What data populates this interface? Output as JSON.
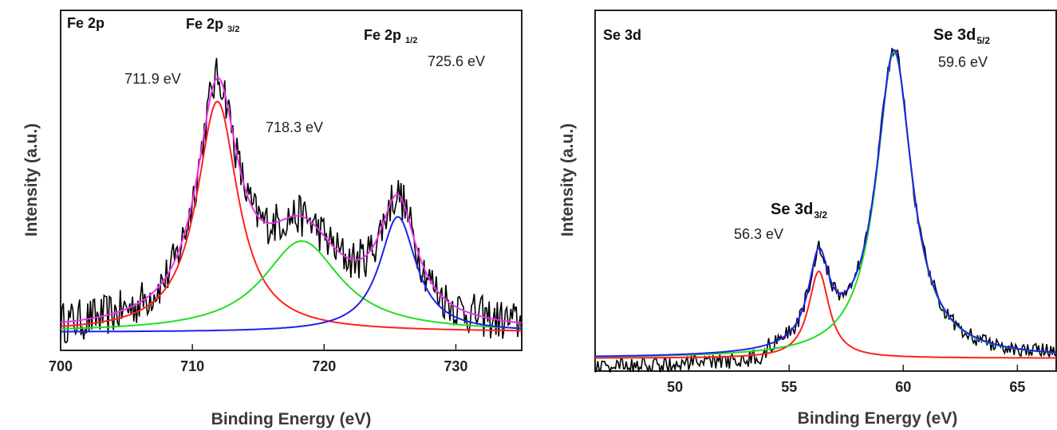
{
  "chart_data": [
    {
      "type": "line",
      "panel_label": "Fe 2p",
      "xlabel": "Binding Energy (eV)",
      "ylabel": "Intensity (a.u.)",
      "xlim": [
        700,
        735
      ],
      "xticks": [
        700,
        710,
        720,
        730
      ],
      "y_ticks_shown": false,
      "annotations": [
        {
          "text": "Fe 2p",
          "sub": "3/2",
          "x": 711.9
        },
        {
          "text": "Fe 2p",
          "sub": "1/2",
          "x": 725.6
        },
        {
          "text": "711.9 eV",
          "x": 711.9
        },
        {
          "text": "718.3 eV",
          "x": 718.3
        },
        {
          "text": "725.6 eV",
          "x": 725.6
        }
      ],
      "baseline": 0.06,
      "peaks": [
        {
          "center": 711.9,
          "height": 0.76,
          "width": 1.9,
          "color": "#ff2020"
        },
        {
          "center": 718.3,
          "height": 0.3,
          "width": 3.6,
          "color": "#22dd22"
        },
        {
          "center": 725.6,
          "height": 0.38,
          "width": 1.7,
          "color": "#2020ee"
        }
      ],
      "envelope_color": "#ee30ee",
      "experimental_color": "#000000",
      "noise_amplitude": 0.07,
      "ylim": [
        0,
        1.12
      ]
    },
    {
      "type": "line",
      "panel_label": "Se 3d",
      "xlabel": "Binding Energy (eV)",
      "ylabel": "Intensity (a.u.)",
      "xlim": [
        46.5,
        66.7
      ],
      "xticks": [
        50,
        55,
        60,
        65
      ],
      "y_ticks_shown": false,
      "annotations": [
        {
          "text": "Se 3d",
          "sub": "3/2",
          "x": 56.3
        },
        {
          "text": "Se 3d",
          "sub": "5/2",
          "x": 59.6
        },
        {
          "text": "56.3 eV",
          "x": 56.3
        },
        {
          "text": "59.6 eV",
          "x": 59.6
        }
      ],
      "baseline": 0.04,
      "peaks": [
        {
          "center": 56.3,
          "height": 0.27,
          "width": 0.55,
          "color": "#ff2020"
        },
        {
          "center": 59.6,
          "height": 0.95,
          "width": 0.95,
          "color": "#22dd22"
        }
      ],
      "envelope_color": "#2020ee",
      "experimental_color": "#000000",
      "noise_amplitude": 0.025,
      "ylim": [
        0,
        1.12
      ]
    }
  ]
}
